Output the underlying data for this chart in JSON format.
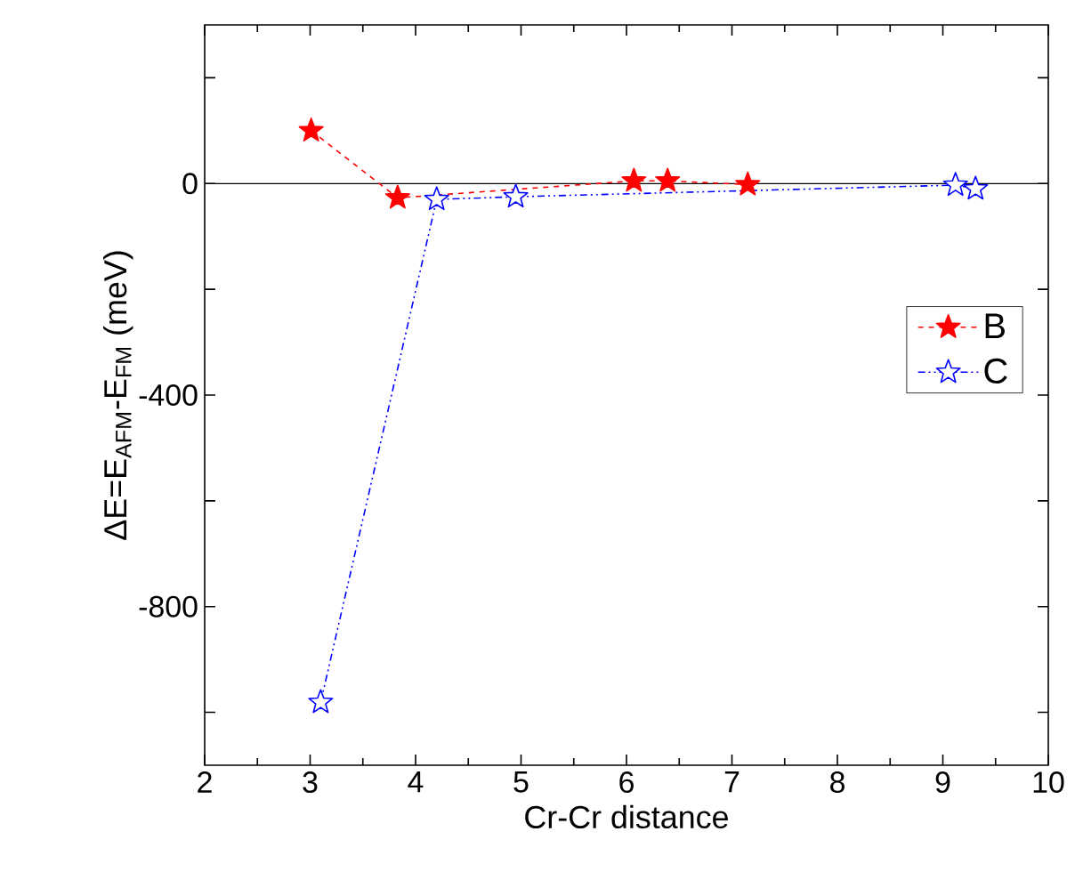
{
  "chart_data": {
    "type": "line",
    "xlabel": "Cr-Cr distance",
    "ylabel": "ΔE=E$_{AFM}$-E$_{FM}$ (meV)",
    "xlim": [
      2,
      10
    ],
    "xticks": [
      2,
      3,
      4,
      5,
      6,
      7,
      8,
      9,
      10
    ],
    "ylim": [
      -1100,
      300
    ],
    "yticks": [
      {
        "value": -1000,
        "label": null
      },
      -800,
      {
        "value": -600,
        "label": null
      },
      -400,
      {
        "value": -200,
        "label": null
      },
      0,
      {
        "value": 200,
        "label": null
      }
    ],
    "marker": "star",
    "legend": "right",
    "ref_lines": [
      {
        "axis": "y",
        "value": 0,
        "color": "#000000"
      }
    ],
    "series": [
      {
        "name": "B",
        "color": "#ff0000",
        "line_style": "dashed",
        "x": [
          3.01,
          3.83,
          6.07,
          6.39,
          7.15
        ],
        "values": [
          100,
          -27,
          5,
          5,
          -2
        ]
      },
      {
        "name": "C",
        "color": "#0000ff",
        "line_style": "dotted",
        "x": [
          3.1,
          4.2,
          4.95,
          9.12,
          9.31
        ],
        "values": [
          -981,
          -30,
          -25,
          -3,
          -10
        ]
      }
    ]
  }
}
